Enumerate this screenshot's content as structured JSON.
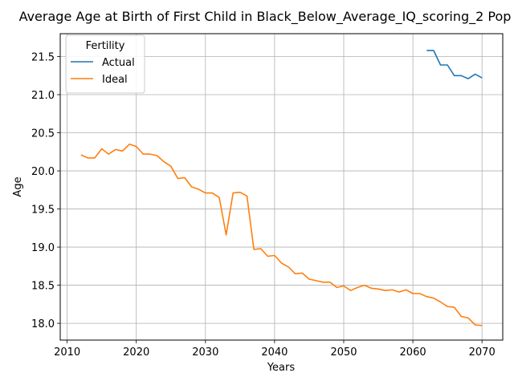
{
  "chart_data": {
    "type": "line",
    "title": "Average Age at Birth of First Child in Black_Below_Average_IQ_scoring_2 Pop",
    "xlabel": "Years",
    "ylabel": "Age",
    "xlim": [
      2009,
      2073
    ],
    "ylim": [
      17.78,
      21.8
    ],
    "xticks": [
      2010,
      2020,
      2030,
      2040,
      2050,
      2060,
      2070
    ],
    "xtick_labels": [
      "2010",
      "2020",
      "2030",
      "2040",
      "2050",
      "2060",
      "2070"
    ],
    "yticks": [
      18.0,
      18.5,
      19.0,
      19.5,
      20.0,
      20.5,
      21.0,
      21.5
    ],
    "ytick_labels": [
      "18.0",
      "18.5",
      "19.0",
      "19.5",
      "20.0",
      "20.5",
      "21.0",
      "21.5"
    ],
    "grid": true,
    "legend": {
      "title": "Fertility",
      "placement": "top-left"
    },
    "series": [
      {
        "name": "Actual",
        "color": "#1f77b4",
        "x": [
          2062,
          2063,
          2064,
          2065,
          2066,
          2067,
          2068,
          2069,
          2070
        ],
        "y": [
          21.58,
          21.58,
          21.39,
          21.39,
          21.25,
          21.25,
          21.21,
          21.27,
          21.22
        ]
      },
      {
        "name": "Ideal",
        "color": "#ff7f0e",
        "x": [
          2012,
          2013,
          2014,
          2015,
          2016,
          2017,
          2018,
          2019,
          2020,
          2021,
          2022,
          2023,
          2024,
          2025,
          2026,
          2027,
          2028,
          2029,
          2030,
          2031,
          2032,
          2033,
          2034,
          2035,
          2036,
          2037,
          2038,
          2039,
          2040,
          2041,
          2042,
          2043,
          2044,
          2045,
          2046,
          2047,
          2048,
          2049,
          2050,
          2051,
          2052,
          2053,
          2054,
          2055,
          2056,
          2057,
          2058,
          2059,
          2060,
          2061,
          2062,
          2063,
          2064,
          2065,
          2066,
          2067,
          2068,
          2069,
          2070
        ],
        "y": [
          20.21,
          20.17,
          20.17,
          20.29,
          20.22,
          20.28,
          20.26,
          20.35,
          20.32,
          20.22,
          20.22,
          20.2,
          20.12,
          20.06,
          19.9,
          19.91,
          19.79,
          19.76,
          19.71,
          19.71,
          19.65,
          19.16,
          19.71,
          19.72,
          19.67,
          18.97,
          18.98,
          18.88,
          18.89,
          18.79,
          18.74,
          18.65,
          18.66,
          18.58,
          18.56,
          18.54,
          18.54,
          18.47,
          18.49,
          18.43,
          18.47,
          18.5,
          18.46,
          18.45,
          18.43,
          18.44,
          18.41,
          18.44,
          18.39,
          18.39,
          18.35,
          18.33,
          18.28,
          18.22,
          18.21,
          18.09,
          18.07,
          17.98,
          17.97
        ]
      }
    ]
  }
}
